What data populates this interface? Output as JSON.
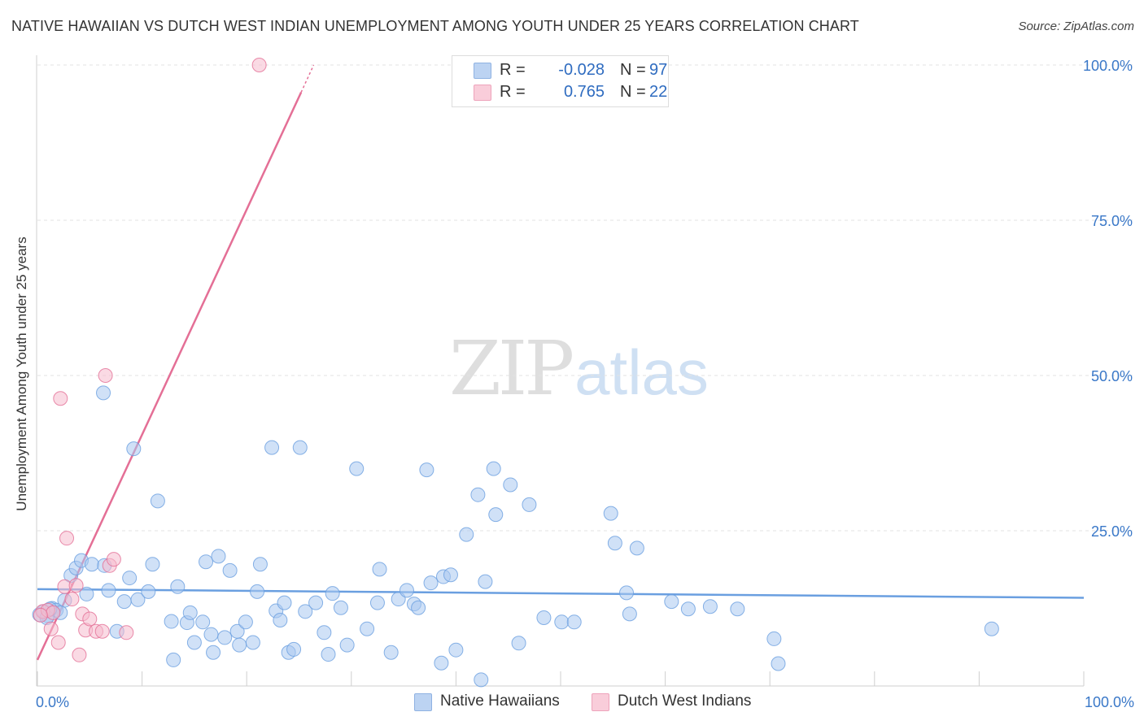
{
  "header": {
    "title": "NATIVE HAWAIIAN VS DUTCH WEST INDIAN UNEMPLOYMENT AMONG YOUTH UNDER 25 YEARS CORRELATION CHART",
    "source": "Source: ZipAtlas.com"
  },
  "watermark": {
    "zip": "ZIP",
    "atlas": "atlas"
  },
  "legend": {
    "r_label": "R =",
    "n_label": "N =",
    "rows": [
      {
        "r": "-0.028",
        "n": "97",
        "color": "#a9c8f0"
      },
      {
        "r": "0.765",
        "n": "22",
        "color": "#f6bccd"
      }
    ]
  },
  "bottom_legend": [
    {
      "label": "Native Hawaiians",
      "color": "#a9c8f0"
    },
    {
      "label": "Dutch West Indians",
      "color": "#f6bccd"
    }
  ],
  "chart_data": {
    "type": "scatter",
    "title": "NATIVE HAWAIIAN VS DUTCH WEST INDIAN UNEMPLOYMENT AMONG YOUTH UNDER 25 YEARS CORRELATION CHART",
    "xlabel": "",
    "ylabel": "Unemployment Among Youth under 25 years",
    "xlim": [
      0,
      100
    ],
    "ylim": [
      0,
      100
    ],
    "x_tick_labels": [
      "0.0%",
      "100.0%"
    ],
    "y_tick_values": [
      25,
      50,
      75,
      100
    ],
    "y_tick_labels": [
      "25.0%",
      "50.0%",
      "75.0%",
      "100.0%"
    ],
    "grid": true,
    "series": [
      {
        "name": "Native Hawaiians",
        "color": "#6a9fe0",
        "fill": "#a9c8f0",
        "trend": {
          "x0": 0,
          "y0": 15.6,
          "x1": 100,
          "y1": 14.2
        },
        "points": [
          [
            0.2,
            11.5
          ],
          [
            0.6,
            12.0
          ],
          [
            1.0,
            11.3
          ],
          [
            1.4,
            12.5
          ],
          [
            1.8,
            12.2
          ],
          [
            2.6,
            13.8
          ],
          [
            3.2,
            17.8
          ],
          [
            3.7,
            19.0
          ],
          [
            4.2,
            20.2
          ],
          [
            4.7,
            14.8
          ],
          [
            5.2,
            19.6
          ],
          [
            6.4,
            19.4
          ],
          [
            6.8,
            15.4
          ],
          [
            7.6,
            8.8
          ],
          [
            8.3,
            13.6
          ],
          [
            8.8,
            17.4
          ],
          [
            9.6,
            13.9
          ],
          [
            10.6,
            15.2
          ],
          [
            11.0,
            19.6
          ],
          [
            6.3,
            47.2
          ],
          [
            9.2,
            38.2
          ],
          [
            11.5,
            29.8
          ],
          [
            12.8,
            10.4
          ],
          [
            13.0,
            4.2
          ],
          [
            13.4,
            16.0
          ],
          [
            14.3,
            10.2
          ],
          [
            14.6,
            11.8
          ],
          [
            15.0,
            7.0
          ],
          [
            15.8,
            10.3
          ],
          [
            16.1,
            20.0
          ],
          [
            16.6,
            8.3
          ],
          [
            16.8,
            5.4
          ],
          [
            17.3,
            20.9
          ],
          [
            17.9,
            7.8
          ],
          [
            18.4,
            18.6
          ],
          [
            19.1,
            8.8
          ],
          [
            19.3,
            6.6
          ],
          [
            19.9,
            10.3
          ],
          [
            20.6,
            7.0
          ],
          [
            21.0,
            15.2
          ],
          [
            21.3,
            19.6
          ],
          [
            22.4,
            38.4
          ],
          [
            22.8,
            12.1
          ],
          [
            23.2,
            10.6
          ],
          [
            23.6,
            13.4
          ],
          [
            24.0,
            5.4
          ],
          [
            24.5,
            5.9
          ],
          [
            25.1,
            38.4
          ],
          [
            25.6,
            12.0
          ],
          [
            26.6,
            13.4
          ],
          [
            27.4,
            8.6
          ],
          [
            27.8,
            5.1
          ],
          [
            28.2,
            14.9
          ],
          [
            29.0,
            12.6
          ],
          [
            29.6,
            6.6
          ],
          [
            30.5,
            35.0
          ],
          [
            31.5,
            9.2
          ],
          [
            32.5,
            13.4
          ],
          [
            32.7,
            18.8
          ],
          [
            33.8,
            5.4
          ],
          [
            34.5,
            14.0
          ],
          [
            35.3,
            15.4
          ],
          [
            36.0,
            13.2
          ],
          [
            36.4,
            12.6
          ],
          [
            37.2,
            34.8
          ],
          [
            37.6,
            16.6
          ],
          [
            38.6,
            3.7
          ],
          [
            38.8,
            17.6
          ],
          [
            39.5,
            17.9
          ],
          [
            40.0,
            5.8
          ],
          [
            41.0,
            24.4
          ],
          [
            42.1,
            30.8
          ],
          [
            42.4,
            1.0
          ],
          [
            42.8,
            16.8
          ],
          [
            43.6,
            35.0
          ],
          [
            43.8,
            27.6
          ],
          [
            45.2,
            32.4
          ],
          [
            46.0,
            6.9
          ],
          [
            47.0,
            29.2
          ],
          [
            48.4,
            11.0
          ],
          [
            50.1,
            10.3
          ],
          [
            51.3,
            10.3
          ],
          [
            54.8,
            27.8
          ],
          [
            55.2,
            23.0
          ],
          [
            56.3,
            15.0
          ],
          [
            56.6,
            11.6
          ],
          [
            57.3,
            22.2
          ],
          [
            60.6,
            13.6
          ],
          [
            62.2,
            12.4
          ],
          [
            64.3,
            12.8
          ],
          [
            66.9,
            12.4
          ],
          [
            70.4,
            7.6
          ],
          [
            70.8,
            3.6
          ],
          [
            91.2,
            9.2
          ],
          [
            0.9,
            11.0
          ],
          [
            2.2,
            11.8
          ],
          [
            1.2,
            12.4
          ]
        ]
      },
      {
        "name": "Dutch West Indians",
        "color": "#e46f96",
        "fill": "#f6bccd",
        "trend": {
          "x0": 0,
          "y0": 4.2,
          "x1": 25.2,
          "y1": 95.6,
          "dash_x1": 26.4,
          "dash_y1": 100
        },
        "points": [
          [
            0.5,
            12.0
          ],
          [
            1.0,
            12.2
          ],
          [
            1.3,
            9.2
          ],
          [
            1.5,
            11.8
          ],
          [
            2.0,
            7.0
          ],
          [
            2.2,
            46.3
          ],
          [
            2.6,
            16.0
          ],
          [
            2.8,
            23.8
          ],
          [
            3.3,
            14.0
          ],
          [
            3.7,
            16.2
          ],
          [
            4.0,
            5.0
          ],
          [
            4.3,
            11.6
          ],
          [
            4.6,
            9.0
          ],
          [
            5.0,
            10.8
          ],
          [
            5.6,
            8.8
          ],
          [
            6.2,
            8.8
          ],
          [
            6.5,
            50.0
          ],
          [
            6.9,
            19.4
          ],
          [
            7.3,
            20.4
          ],
          [
            8.5,
            8.6
          ],
          [
            21.2,
            100.0
          ],
          [
            0.3,
            11.4
          ]
        ]
      }
    ]
  }
}
